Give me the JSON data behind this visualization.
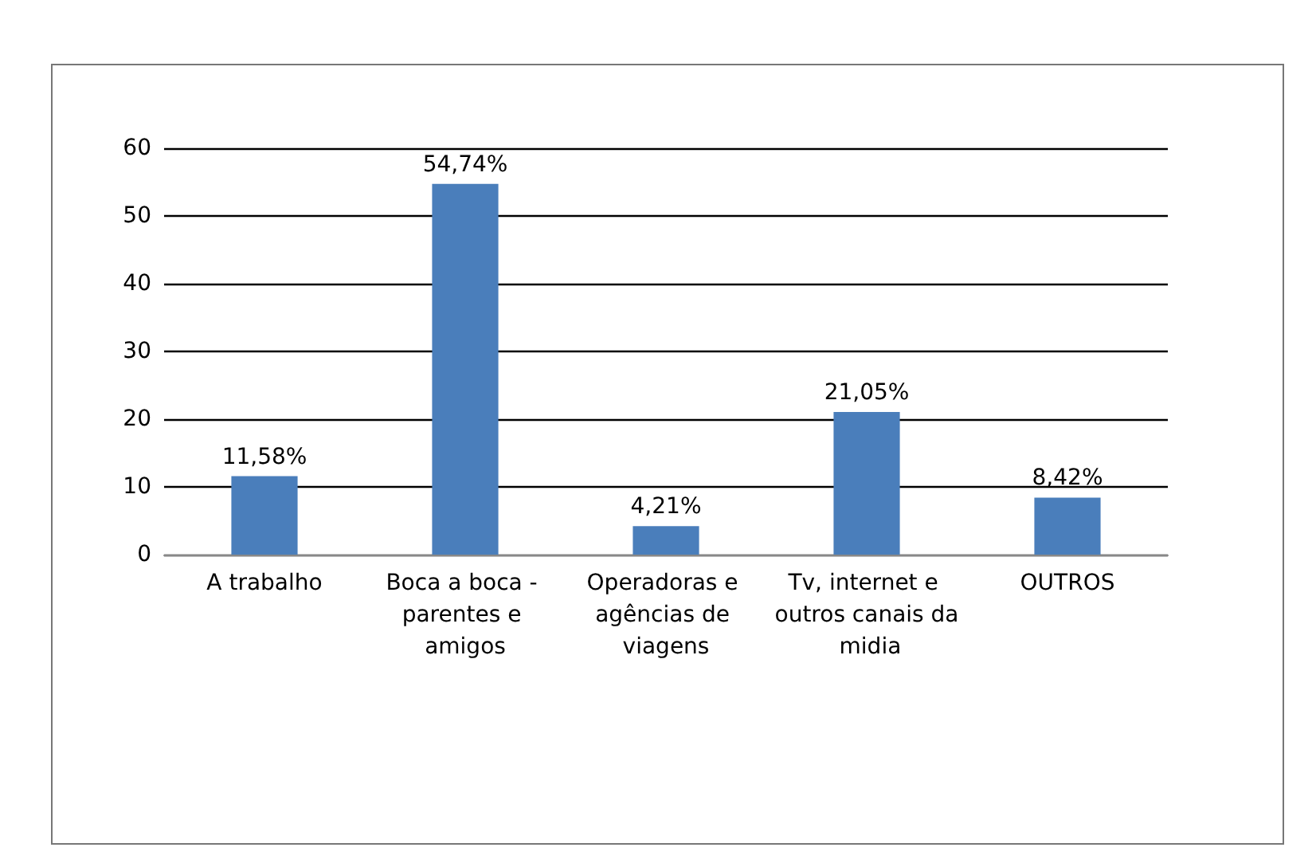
{
  "chart_data": {
    "type": "bar",
    "categories": [
      "A trabalho",
      "Boca a boca - parentes e amigos",
      "Operadoras e agências de viagens",
      "Tv, internet e outros canais da midia",
      "OUTROS"
    ],
    "values": [
      11.58,
      54.74,
      4.21,
      21.05,
      8.42
    ],
    "value_labels": [
      "11,58%",
      "54,74%",
      "4,21%",
      "21,05%",
      "8,42%"
    ],
    "color": "#4a7ebb",
    "ylim": [
      0,
      60
    ],
    "yticks": [
      0,
      10,
      20,
      30,
      40,
      50,
      60
    ],
    "grid": "y"
  }
}
